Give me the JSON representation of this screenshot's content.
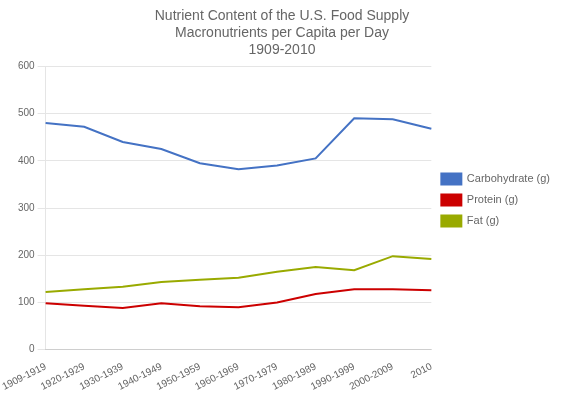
{
  "chart_data": {
    "type": "line",
    "title": "Nutrient Content of the U.S. Food Supply\nMacronutrients per Capita per Day\n1909-2010",
    "categories": [
      "1909-1919",
      "1920-1929",
      "1930-1939",
      "1940-1949",
      "1950-1959",
      "1960-1969",
      "1970-1979",
      "1980-1989",
      "1990-1999",
      "2000-2009",
      "2010"
    ],
    "series": [
      {
        "name": "Carbohydrate (g)",
        "color": "#4472C4",
        "values": [
          480,
          472,
          440,
          425,
          395,
          382,
          390,
          405,
          490,
          488,
          468
        ]
      },
      {
        "name": "Protein (g)",
        "color": "#CC0000",
        "values": [
          98,
          93,
          88,
          98,
          92,
          90,
          100,
          118,
          128,
          128,
          126
        ]
      },
      {
        "name": "Fat (g)",
        "color": "#99AA00",
        "values": [
          122,
          128,
          133,
          143,
          148,
          152,
          165,
          175,
          168,
          198,
          192
        ]
      }
    ],
    "ylim": [
      0,
      600
    ],
    "yticks": [
      0,
      100,
      200,
      300,
      400,
      500,
      600
    ],
    "grid": true,
    "legend": "right"
  }
}
